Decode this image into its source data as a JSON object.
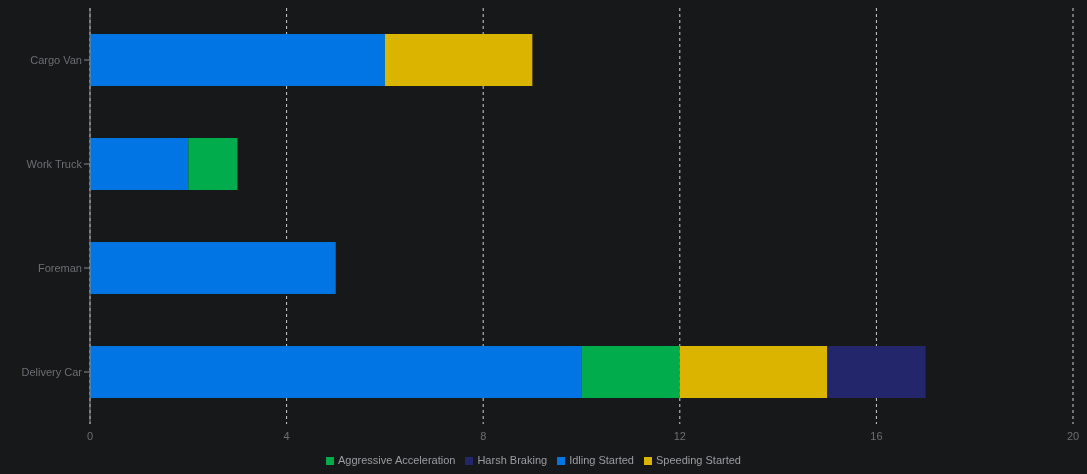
{
  "chart_data": {
    "type": "bar",
    "orientation": "horizontal",
    "stacked": true,
    "categories": [
      "Cargo Van",
      "Work Truck",
      "Foreman",
      "Delivery Car"
    ],
    "series": [
      {
        "name": "Idling Started",
        "color": "#0075e3",
        "values": [
          6,
          2,
          5,
          10
        ]
      },
      {
        "name": "Aggressive Acceleration",
        "color": "#00ac4b",
        "values": [
          null,
          1,
          null,
          2
        ]
      },
      {
        "name": "Speeding Started",
        "color": "#dbb400",
        "values": [
          3,
          null,
          null,
          3
        ]
      },
      {
        "name": "Harsh Braking",
        "color": "#24266c",
        "values": [
          null,
          null,
          null,
          2
        ]
      }
    ],
    "xlim": [
      0,
      20
    ],
    "xticks": [
      0,
      4,
      8,
      12,
      16,
      20
    ],
    "grid": "x",
    "legend": "bottom"
  }
}
